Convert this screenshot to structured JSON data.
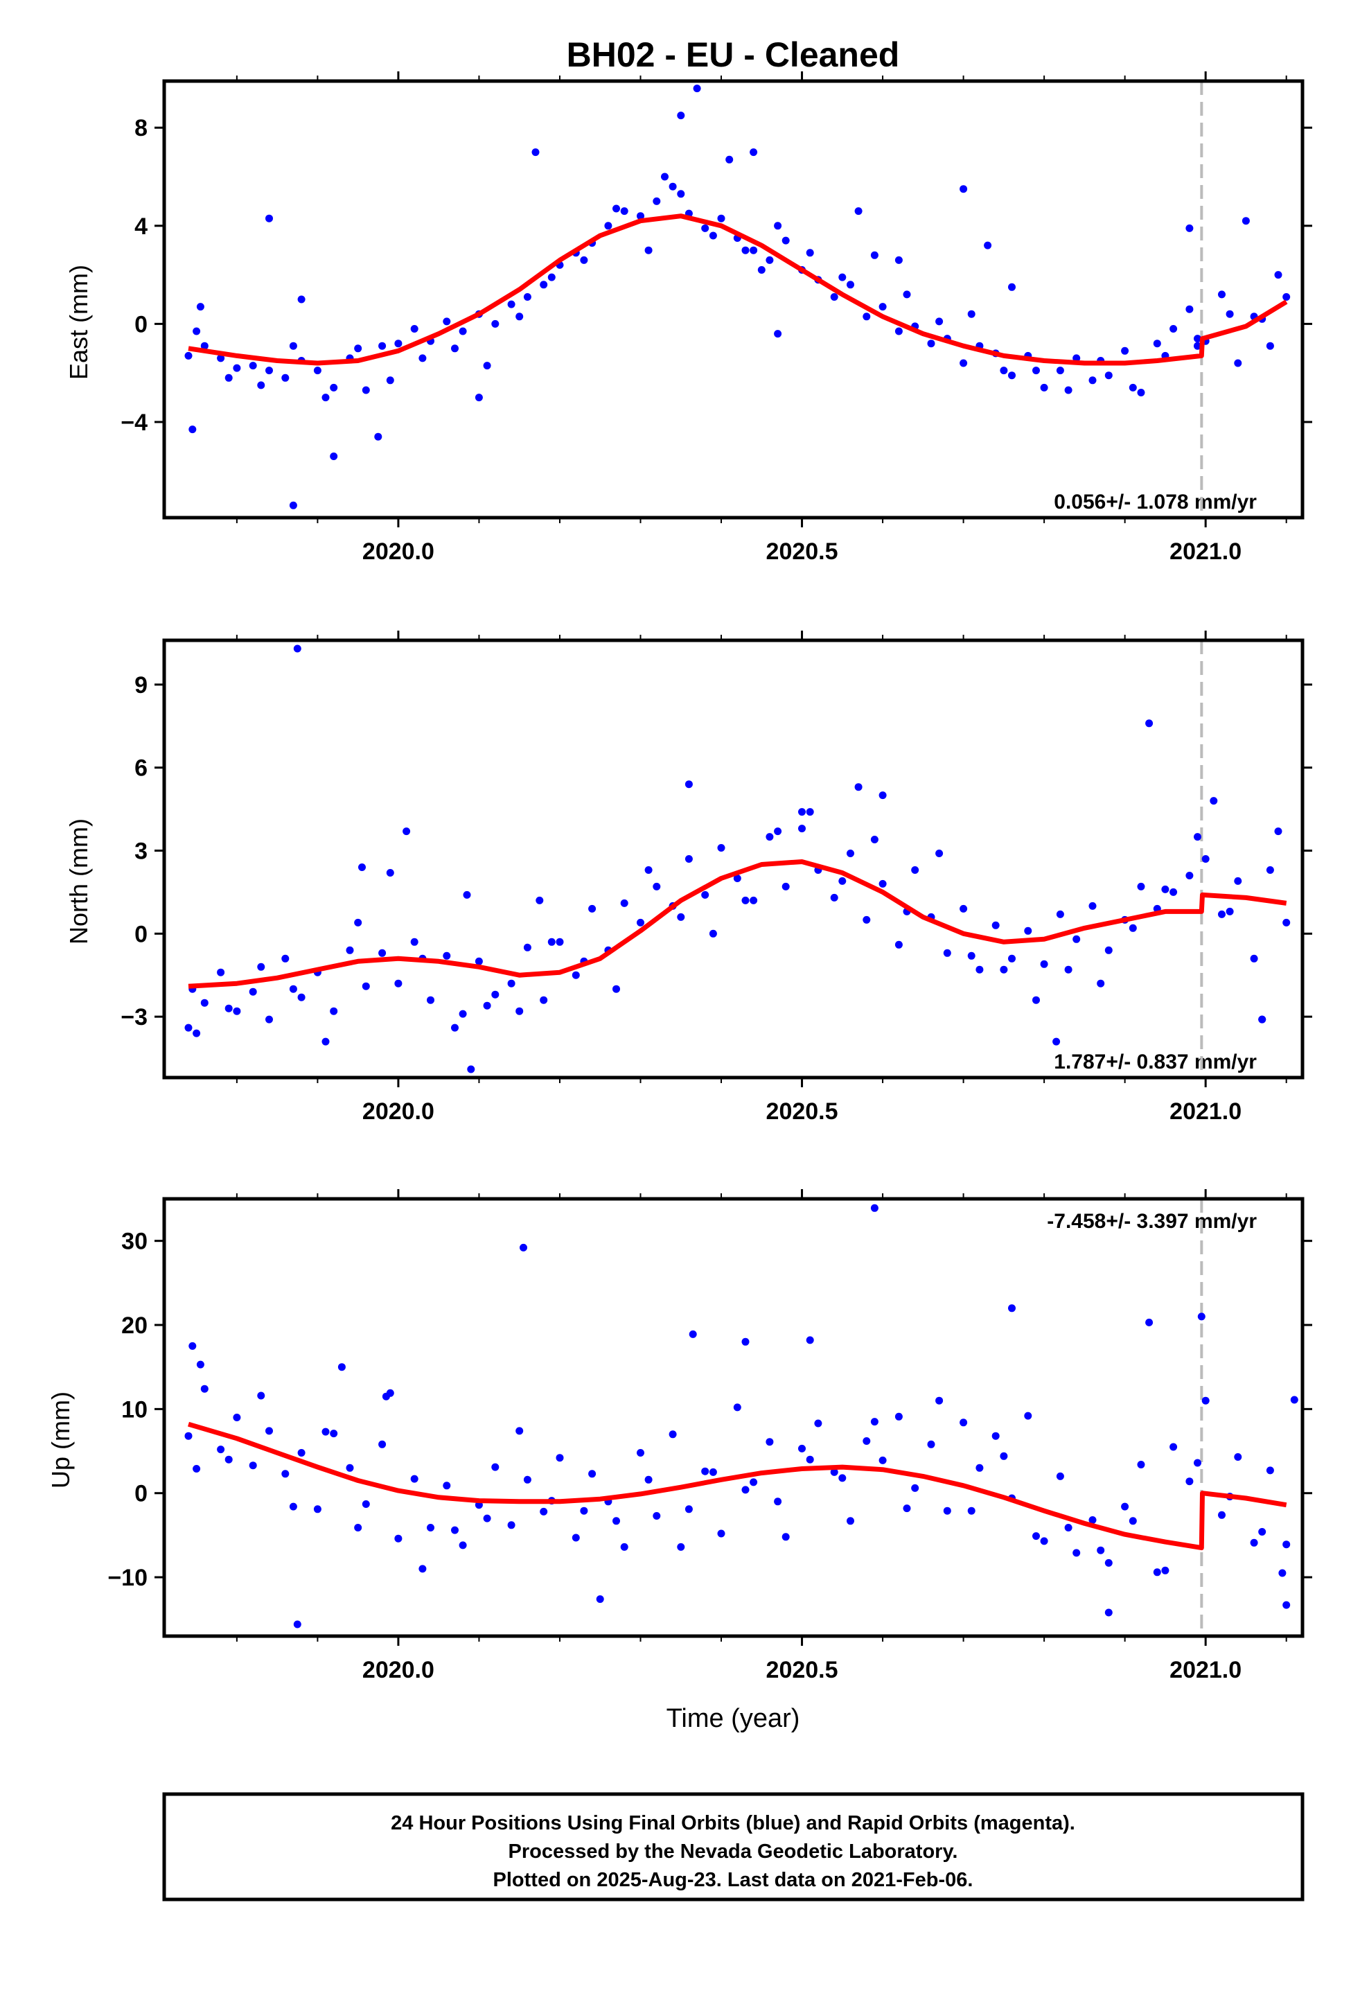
{
  "title": "BH02  - EU - Cleaned",
  "xlabel": "Time (year)",
  "footer": {
    "line1": "24 Hour Positions Using Final Orbits (blue) and Rapid Orbits (magenta).",
    "line2": "Processed by the Nevada Geodetic Laboratory.",
    "line3": "Plotted on 2025-Aug-23. Last data on 2021-Feb-06."
  },
  "colors": {
    "points": "#0000ff",
    "model": "#ff0000",
    "step_line": "#bbbbbb",
    "frame": "#000000"
  },
  "chart_data": [
    {
      "type": "scatter",
      "ylabel": "East (mm)",
      "rate_text": "0.056+/- 1.078 mm/yr",
      "rate_position": "bottom-right",
      "xlim": [
        2019.71,
        2021.12
      ],
      "ylim": [
        -7.9,
        9.9
      ],
      "xticks": [
        2020.0,
        2020.5,
        2021.0
      ],
      "xtick_labels": [
        "2020.0",
        "2020.5",
        "2021.0"
      ],
      "yticks": [
        -4,
        0,
        4,
        8
      ],
      "ytick_labels": [
        "−4",
        "0",
        "4",
        "8"
      ],
      "step_epoch": 2020.995,
      "model": {
        "name": "",
        "x": [
          2019.74,
          2019.8,
          2019.85,
          2019.9,
          2019.95,
          2020.0,
          2020.05,
          2020.1,
          2020.15,
          2020.2,
          2020.25,
          2020.3,
          2020.35,
          2020.4,
          2020.45,
          2020.5,
          2020.55,
          2020.6,
          2020.65,
          2020.7,
          2020.75,
          2020.8,
          2020.85,
          2020.9,
          2020.94,
          2020.995,
          2020.996,
          2021.05,
          2021.1
        ],
        "y": [
          -1.0,
          -1.3,
          -1.5,
          -1.6,
          -1.5,
          -1.1,
          -0.4,
          0.4,
          1.4,
          2.6,
          3.6,
          4.2,
          4.4,
          4.0,
          3.2,
          2.2,
          1.2,
          0.3,
          -0.4,
          -0.9,
          -1.3,
          -1.5,
          -1.6,
          -1.6,
          -1.5,
          -1.3,
          -0.6,
          -0.1,
          0.9
        ]
      },
      "points": {
        "name": "",
        "x": [
          2019.74,
          2019.76,
          2019.78,
          2019.8,
          2019.82,
          2019.84,
          2019.86,
          2019.88,
          2019.9,
          2019.92,
          2019.94,
          2019.96,
          2019.98,
          2020.0,
          2020.02,
          2020.04,
          2020.06,
          2020.08,
          2020.1,
          2020.12,
          2020.14,
          2020.16,
          2020.18,
          2020.2,
          2020.22,
          2020.24,
          2020.26,
          2020.28,
          2020.3,
          2020.32,
          2020.34,
          2020.36,
          2020.38,
          2020.4,
          2020.42,
          2020.44,
          2020.46,
          2020.48,
          2020.5,
          2020.52,
          2020.54,
          2020.56,
          2020.58,
          2020.6,
          2020.62,
          2020.64,
          2020.66,
          2020.68,
          2020.7,
          2020.72,
          2020.74,
          2020.76,
          2020.78,
          2020.8,
          2020.82,
          2020.84,
          2020.86,
          2020.88,
          2020.9,
          2020.92,
          2020.94,
          2020.96,
          2020.98,
          2021.0,
          2021.02,
          2021.04,
          2021.06,
          2021.08,
          2021.1,
          2019.75,
          2019.79,
          2019.83,
          2019.87,
          2019.91,
          2019.95,
          2019.99,
          2020.03,
          2020.07,
          2020.11,
          2020.15,
          2020.19,
          2020.23,
          2020.27,
          2020.31,
          2020.35,
          2020.39,
          2020.43,
          2020.47,
          2020.51,
          2020.55,
          2020.59,
          2020.63,
          2020.67,
          2020.71,
          2020.75,
          2020.79,
          2020.83,
          2020.87,
          2020.91,
          2020.95,
          2020.99,
          2021.03,
          2021.07,
          2019.745,
          2019.755,
          2019.87,
          2019.88,
          2019.92,
          2019.84,
          2019.975,
          2020.1,
          2020.17,
          2020.35,
          2020.33,
          2020.37,
          2020.41,
          2020.44,
          2020.47,
          2020.57,
          2020.62,
          2020.7,
          2020.73,
          2020.76,
          2020.98,
          2021.05,
          2021.09,
          2020.45,
          2020.99
        ],
        "y": [
          -1.3,
          -0.9,
          -1.4,
          -1.8,
          -1.7,
          -1.9,
          -2.2,
          -1.5,
          -1.9,
          -2.6,
          -1.4,
          -2.7,
          -0.9,
          -0.8,
          -0.2,
          -0.7,
          0.1,
          -0.3,
          0.4,
          0.0,
          0.8,
          1.1,
          1.6,
          2.4,
          2.9,
          3.3,
          4.0,
          4.6,
          4.4,
          5.0,
          5.6,
          4.5,
          3.9,
          4.3,
          3.5,
          3.0,
          2.6,
          3.4,
          2.2,
          1.8,
          1.1,
          1.6,
          0.3,
          0.7,
          -0.3,
          -0.1,
          -0.8,
          -0.6,
          -1.6,
          -0.9,
          -1.2,
          -2.1,
          -1.3,
          -2.6,
          -1.9,
          -1.4,
          -2.3,
          -2.1,
          -1.1,
          -2.8,
          -0.8,
          -0.2,
          0.6,
          -0.7,
          1.2,
          -1.6,
          0.3,
          -0.9,
          1.1,
          -0.3,
          -2.2,
          -2.5,
          -0.9,
          -3.0,
          -1.0,
          -2.3,
          -1.4,
          -1.0,
          -1.7,
          0.3,
          1.9,
          2.6,
          4.7,
          3.0,
          5.3,
          3.6,
          3.0,
          4.0,
          2.9,
          1.9,
          2.8,
          1.2,
          0.1,
          0.4,
          -1.9,
          -1.9,
          -2.7,
          -1.5,
          -2.6,
          -1.3,
          -0.9,
          0.4,
          0.2,
          -4.3,
          0.7,
          -7.4,
          1.0,
          -5.4,
          4.3,
          -4.6,
          -3.0,
          7.0,
          8.5,
          6.0,
          9.6,
          6.7,
          7.0,
          -0.4,
          4.6,
          2.6,
          5.5,
          3.2,
          1.5,
          3.9,
          4.2,
          2.0,
          2.2,
          -0.6
        ]
      }
    },
    {
      "type": "scatter",
      "ylabel": "North (mm)",
      "rate_text": "1.787+/- 0.837 mm/yr",
      "rate_position": "bottom-right",
      "xlim": [
        2019.71,
        2021.12
      ],
      "ylim": [
        -5.2,
        10.6
      ],
      "xticks": [
        2020.0,
        2020.5,
        2021.0
      ],
      "xtick_labels": [
        "2020.0",
        "2020.5",
        "2021.0"
      ],
      "yticks": [
        -3,
        0,
        3,
        6,
        9
      ],
      "ytick_labels": [
        "−3",
        "0",
        "3",
        "6",
        "9"
      ],
      "step_epoch": 2020.995,
      "model": {
        "name": "",
        "x": [
          2019.74,
          2019.8,
          2019.85,
          2019.9,
          2019.95,
          2020.0,
          2020.05,
          2020.1,
          2020.15,
          2020.2,
          2020.25,
          2020.3,
          2020.35,
          2020.4,
          2020.45,
          2020.5,
          2020.55,
          2020.6,
          2020.65,
          2020.7,
          2020.75,
          2020.8,
          2020.85,
          2020.9,
          2020.95,
          2020.995,
          2020.996,
          2021.05,
          2021.1
        ],
        "y": [
          -1.9,
          -1.8,
          -1.6,
          -1.3,
          -1.0,
          -0.9,
          -1.0,
          -1.2,
          -1.5,
          -1.4,
          -0.9,
          0.1,
          1.2,
          2.0,
          2.5,
          2.6,
          2.2,
          1.5,
          0.6,
          0.0,
          -0.3,
          -0.2,
          0.2,
          0.5,
          0.8,
          0.8,
          1.4,
          1.3,
          1.1
        ]
      },
      "points": {
        "name": "",
        "x": [
          2019.74,
          2019.76,
          2019.78,
          2019.8,
          2019.82,
          2019.84,
          2019.86,
          2019.88,
          2019.9,
          2019.92,
          2019.94,
          2019.96,
          2019.98,
          2020.0,
          2020.02,
          2020.04,
          2020.06,
          2020.08,
          2020.1,
          2020.12,
          2020.14,
          2020.16,
          2020.18,
          2020.2,
          2020.22,
          2020.24,
          2020.26,
          2020.28,
          2020.3,
          2020.32,
          2020.34,
          2020.36,
          2020.38,
          2020.4,
          2020.42,
          2020.44,
          2020.46,
          2020.48,
          2020.5,
          2020.52,
          2020.54,
          2020.56,
          2020.58,
          2020.6,
          2020.62,
          2020.64,
          2020.66,
          2020.68,
          2020.7,
          2020.72,
          2020.74,
          2020.76,
          2020.78,
          2020.8,
          2020.82,
          2020.84,
          2020.86,
          2020.88,
          2020.9,
          2020.92,
          2020.94,
          2020.96,
          2020.98,
          2021.0,
          2021.02,
          2021.04,
          2021.06,
          2021.08,
          2021.1,
          2019.75,
          2019.79,
          2019.83,
          2019.87,
          2019.91,
          2019.95,
          2019.99,
          2020.03,
          2020.07,
          2020.11,
          2020.15,
          2020.19,
          2020.23,
          2020.27,
          2020.31,
          2020.35,
          2020.39,
          2020.43,
          2020.47,
          2020.51,
          2020.55,
          2020.59,
          2020.63,
          2020.67,
          2020.71,
          2020.75,
          2020.79,
          2020.83,
          2020.87,
          2020.91,
          2020.95,
          2020.99,
          2021.03,
          2021.07,
          2019.875,
          2019.955,
          2020.01,
          2020.09,
          2020.085,
          2020.175,
          2020.36,
          2020.57,
          2020.6,
          2020.93,
          2021.01,
          2020.815,
          2021.09,
          2021.07,
          2020.5,
          2019.745
        ],
        "y": [
          -3.4,
          -2.5,
          -1.4,
          -2.8,
          -2.1,
          -3.1,
          -0.9,
          -2.3,
          -1.4,
          -2.8,
          -0.6,
          -1.9,
          -0.7,
          -1.8,
          -0.3,
          -2.4,
          -0.8,
          -2.9,
          -1.0,
          -2.2,
          -1.8,
          -0.5,
          -2.4,
          -0.3,
          -1.5,
          0.9,
          -0.6,
          1.1,
          0.4,
          1.7,
          1.0,
          2.7,
          1.4,
          3.1,
          2.0,
          1.2,
          3.5,
          1.7,
          3.8,
          2.3,
          1.3,
          2.9,
          0.5,
          1.8,
          -0.4,
          2.3,
          0.6,
          -0.7,
          0.9,
          -1.3,
          0.3,
          -0.9,
          0.1,
          -1.1,
          0.7,
          -0.2,
          1.0,
          -0.6,
          0.5,
          1.7,
          0.9,
          1.5,
          2.1,
          2.7,
          0.7,
          1.9,
          -0.9,
          2.3,
          0.4,
          -3.6,
          -2.7,
          -1.2,
          -2.0,
          -3.9,
          0.4,
          2.2,
          -0.9,
          -3.4,
          -2.6,
          -2.8,
          -0.3,
          -1.0,
          -2.0,
          2.3,
          0.6,
          0.0,
          1.2,
          3.7,
          4.4,
          1.9,
          3.4,
          0.8,
          2.9,
          -0.8,
          -1.3,
          -2.4,
          -1.3,
          -1.8,
          0.2,
          1.6,
          3.5,
          0.8,
          -3.1,
          10.3,
          2.4,
          3.7,
          -4.9,
          1.4,
          1.2,
          5.4,
          5.3,
          5.0,
          7.6,
          4.8,
          -3.9,
          3.7,
          -3.1,
          4.4,
          -2.0
        ]
      }
    },
    {
      "type": "scatter",
      "ylabel": "Up (mm)",
      "rate_text": "-7.458+/- 3.397 mm/yr",
      "rate_position": "top-right",
      "xlim": [
        2019.71,
        2021.12
      ],
      "ylim": [
        -17,
        35
      ],
      "xticks": [
        2020.0,
        2020.5,
        2021.0
      ],
      "xtick_labels": [
        "2020.0",
        "2020.5",
        "2021.0"
      ],
      "yticks": [
        -10,
        0,
        10,
        20,
        30
      ],
      "ytick_labels": [
        "−10",
        "0",
        "10",
        "20",
        "30"
      ],
      "xlabel": "Time (year)",
      "step_epoch": 2020.995,
      "model": {
        "name": "",
        "x": [
          2019.74,
          2019.8,
          2019.85,
          2019.9,
          2019.95,
          2020.0,
          2020.05,
          2020.1,
          2020.15,
          2020.2,
          2020.25,
          2020.3,
          2020.35,
          2020.4,
          2020.45,
          2020.5,
          2020.55,
          2020.6,
          2020.65,
          2020.7,
          2020.75,
          2020.8,
          2020.85,
          2020.9,
          2020.95,
          2020.995,
          2020.996,
          2021.05,
          2021.1
        ],
        "y": [
          8.2,
          6.5,
          4.8,
          3.1,
          1.5,
          0.3,
          -0.5,
          -0.9,
          -1.0,
          -1.0,
          -0.7,
          -0.1,
          0.7,
          1.6,
          2.4,
          2.9,
          3.1,
          2.8,
          2.0,
          0.9,
          -0.5,
          -2.1,
          -3.6,
          -4.9,
          -5.8,
          -6.5,
          0.0,
          -0.6,
          -1.4
        ]
      },
      "points": {
        "name": "",
        "x": [
          2019.74,
          2019.76,
          2019.78,
          2019.8,
          2019.82,
          2019.84,
          2019.86,
          2019.88,
          2019.9,
          2019.92,
          2019.94,
          2019.96,
          2019.98,
          2020.0,
          2020.02,
          2020.04,
          2020.06,
          2020.08,
          2020.1,
          2020.12,
          2020.14,
          2020.16,
          2020.18,
          2020.2,
          2020.22,
          2020.24,
          2020.26,
          2020.28,
          2020.3,
          2020.32,
          2020.34,
          2020.36,
          2020.38,
          2020.4,
          2020.42,
          2020.44,
          2020.46,
          2020.48,
          2020.5,
          2020.52,
          2020.54,
          2020.56,
          2020.58,
          2020.6,
          2020.62,
          2020.64,
          2020.66,
          2020.68,
          2020.7,
          2020.72,
          2020.74,
          2020.76,
          2020.78,
          2020.8,
          2020.82,
          2020.84,
          2020.86,
          2020.88,
          2020.9,
          2020.92,
          2020.94,
          2020.96,
          2020.98,
          2021.0,
          2021.02,
          2021.04,
          2021.06,
          2021.08,
          2021.1,
          2019.75,
          2019.79,
          2019.83,
          2019.87,
          2019.91,
          2019.95,
          2019.99,
          2020.03,
          2020.07,
          2020.11,
          2020.15,
          2020.19,
          2020.23,
          2020.27,
          2020.31,
          2020.35,
          2020.39,
          2020.43,
          2020.47,
          2020.51,
          2020.55,
          2020.59,
          2020.63,
          2020.67,
          2020.71,
          2020.75,
          2020.79,
          2020.83,
          2020.87,
          2020.91,
          2020.95,
          2020.99,
          2021.03,
          2021.07,
          2019.745,
          2019.755,
          2019.875,
          2019.93,
          2019.985,
          2020.155,
          2020.365,
          2020.43,
          2020.51,
          2020.59,
          2020.76,
          2020.93,
          2020.995,
          2020.88,
          2020.25,
          2021.11,
          2021.095,
          2021.1
        ],
        "y": [
          6.8,
          12.4,
          5.2,
          9.0,
          3.3,
          7.4,
          2.3,
          4.8,
          -1.9,
          7.1,
          3.0,
          -1.3,
          5.8,
          -5.4,
          1.7,
          -4.1,
          0.9,
          -6.2,
          -1.4,
          3.1,
          -3.8,
          1.6,
          -2.2,
          4.2,
          -5.3,
          2.3,
          -1.0,
          -6.4,
          4.8,
          -2.7,
          7.0,
          -1.9,
          2.6,
          -4.8,
          10.2,
          1.3,
          6.1,
          -5.2,
          5.3,
          8.3,
          2.5,
          -3.3,
          6.2,
          3.9,
          9.1,
          0.6,
          5.8,
          -2.1,
          8.4,
          3.0,
          6.8,
          -0.6,
          9.2,
          -5.7,
          2.0,
          -7.1,
          -3.2,
          -8.3,
          -1.6,
          3.4,
          -9.4,
          5.5,
          1.4,
          11.0,
          -2.6,
          4.3,
          -5.9,
          2.7,
          -6.1,
          2.9,
          4.0,
          11.6,
          -1.6,
          7.3,
          -4.1,
          11.9,
          -9.0,
          -4.4,
          -3.0,
          7.4,
          -0.9,
          -2.1,
          -3.3,
          1.6,
          -6.4,
          2.5,
          0.4,
          -1.0,
          4.0,
          1.8,
          8.5,
          -1.8,
          11.0,
          -2.1,
          4.4,
          -5.1,
          -4.1,
          -6.8,
          -3.3,
          -9.2,
          3.6,
          -0.4,
          -4.6,
          17.5,
          15.3,
          -15.6,
          15.0,
          11.5,
          29.2,
          18.9,
          18.0,
          18.2,
          33.9,
          22.0,
          20.3,
          21.0,
          -14.2,
          -12.6,
          11.1,
          -9.5,
          -13.3
        ]
      }
    }
  ]
}
